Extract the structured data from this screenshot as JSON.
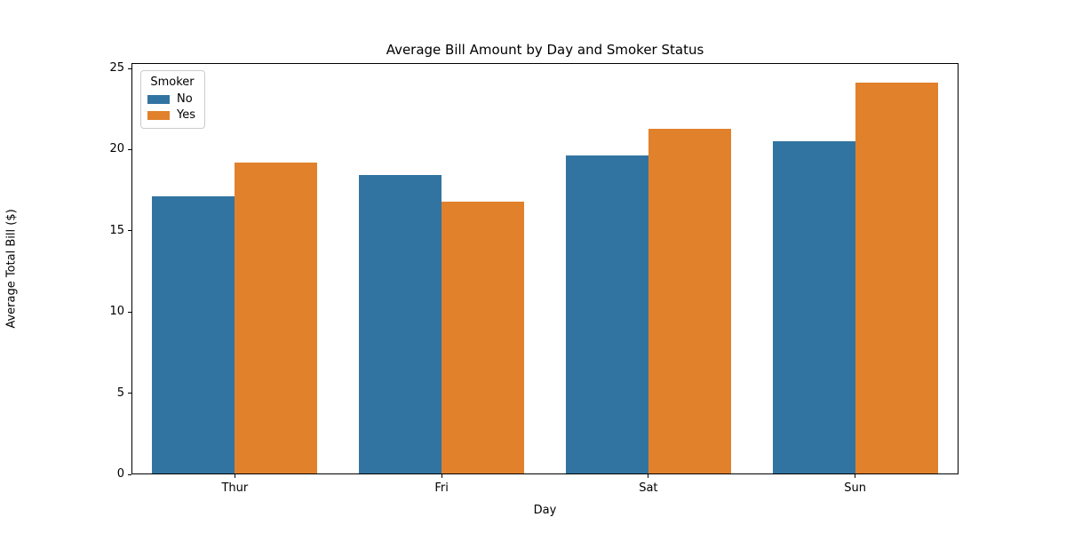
{
  "chart_data": {
    "type": "bar",
    "title": "Average Bill Amount by Day and Smoker Status",
    "xlabel": "Day",
    "ylabel": "Average Total Bill ($)",
    "categories": [
      "Thur",
      "Fri",
      "Sat",
      "Sun"
    ],
    "series": [
      {
        "name": "No",
        "color": "#3274a1",
        "values": [
          17.11,
          18.42,
          19.66,
          20.51
        ]
      },
      {
        "name": "Yes",
        "color": "#e1812c",
        "values": [
          19.19,
          16.81,
          21.28,
          24.12
        ]
      }
    ],
    "yticks": [
      0,
      5,
      10,
      15,
      20,
      25
    ],
    "ylim": [
      0,
      25.33
    ],
    "grid": false,
    "legend_title": "Smoker",
    "legend_position": "upper left",
    "bar_group_width_fraction": 0.8
  }
}
